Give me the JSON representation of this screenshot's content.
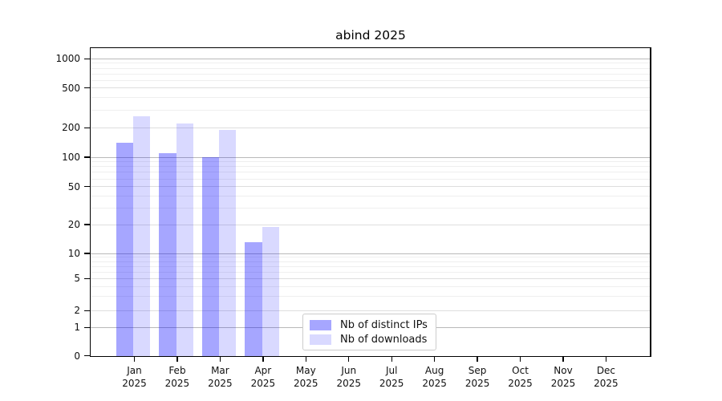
{
  "chart_data": {
    "type": "bar",
    "title": "abind 2025",
    "categories": [
      "Jan 2025",
      "Feb 2025",
      "Mar 2025",
      "Apr 2025",
      "May 2025",
      "Jun 2025",
      "Jul 2025",
      "Aug 2025",
      "Sep 2025",
      "Oct 2025",
      "Nov 2025",
      "Dec 2025"
    ],
    "series": [
      {
        "name": "Nb of distinct IPs",
        "color": "rgba(0,0,255,0.35)",
        "values": [
          140,
          110,
          100,
          13,
          0,
          0,
          0,
          0,
          0,
          0,
          0,
          0
        ]
      },
      {
        "name": "Nb of downloads",
        "color": "rgba(0,0,255,0.15)",
        "values": [
          260,
          220,
          190,
          19,
          0,
          0,
          0,
          0,
          0,
          0,
          0,
          0
        ]
      }
    ],
    "y_ticks": [
      0,
      1,
      2,
      5,
      10,
      20,
      50,
      100,
      200,
      500,
      1000
    ],
    "y_scale": "symlog",
    "ylim": [
      0,
      1400
    ],
    "xlabel": "",
    "ylabel": "",
    "grid": true,
    "legend_position": "bottom-center-inside"
  }
}
